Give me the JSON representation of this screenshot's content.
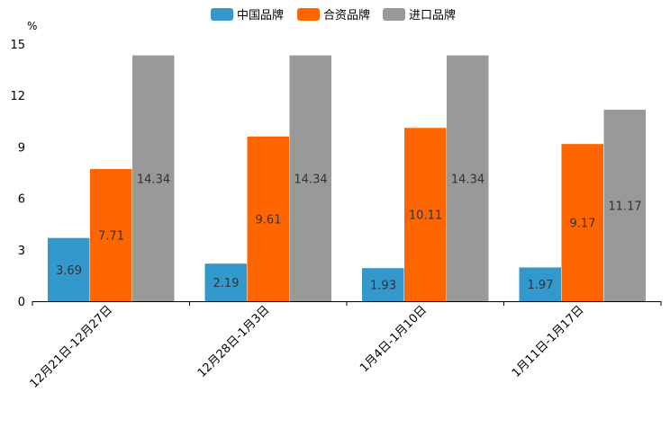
{
  "chart_data": {
    "type": "bar",
    "title": "",
    "ylabel": "%",
    "xlabel": "",
    "ylim": [
      0,
      15
    ],
    "yticks": [
      "0",
      "3",
      "6",
      "9",
      "12",
      "15"
    ],
    "legend_position": "top-center",
    "categories": [
      "12月21日-12月27日",
      "12月28日-1月3日",
      "1月4日-1月10日",
      "1月11日-1月17日"
    ],
    "series": [
      {
        "name": "中国品牌",
        "color": "#3398cc",
        "values": [
          3.69,
          2.19,
          1.93,
          1.97
        ]
      },
      {
        "name": "合资品牌",
        "color": "#ff6600",
        "values": [
          7.71,
          9.61,
          10.11,
          9.17
        ]
      },
      {
        "name": "进口品牌",
        "color": "#999999",
        "values": [
          14.34,
          14.34,
          14.34,
          11.17
        ]
      }
    ]
  }
}
